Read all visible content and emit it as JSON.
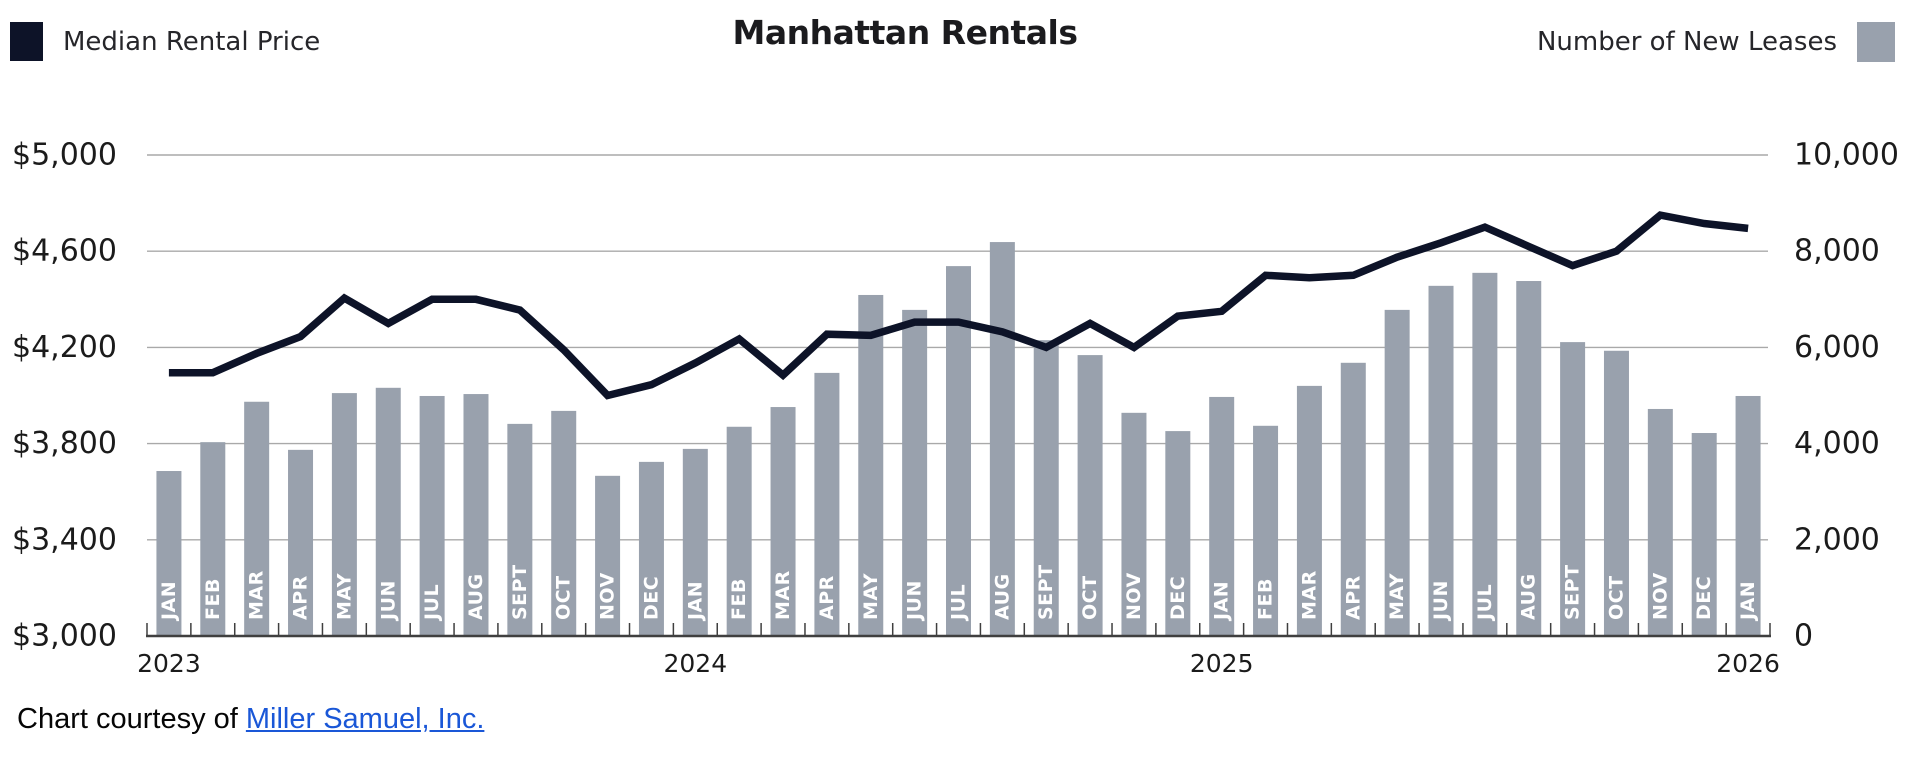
{
  "title": "Manhattan Rentals",
  "legend": {
    "line_label": "Median Rental Price",
    "bar_label": "Number of New Leases"
  },
  "footer": {
    "prefix": "Chart courtesy of ",
    "link_text": "Miller Samuel, Inc."
  },
  "colors": {
    "line": "#0d1328",
    "bar": "#99a1ad",
    "grid": "#a9a9a9",
    "axis": "#3f3f3f",
    "tick_text": "#1b1b1b",
    "bar_label_text": "#ffffff",
    "link": "#1a57d7"
  },
  "chart_data": {
    "type": "combo-bar-line",
    "title": "Manhattan Rentals",
    "months": [
      "JAN",
      "FEB",
      "MAR",
      "APR",
      "MAY",
      "JUN",
      "JUL",
      "AUG",
      "SEPT",
      "OCT",
      "NOV",
      "DEC",
      "JAN",
      "FEB",
      "MAR",
      "APR",
      "MAY",
      "JUN",
      "JUL",
      "AUG",
      "SEPT",
      "OCT",
      "NOV",
      "DEC",
      "JAN",
      "FEB",
      "MAR",
      "APR",
      "MAY",
      "JUN",
      "JUL",
      "AUG",
      "SEPT",
      "OCT",
      "NOV",
      "DEC",
      "JAN"
    ],
    "year_labels": [
      {
        "text": "2023",
        "month_index": 0
      },
      {
        "text": "2024",
        "month_index": 12
      },
      {
        "text": "2025",
        "month_index": 24
      },
      {
        "text": "2026",
        "month_index": 36
      }
    ],
    "series": [
      {
        "name": "Median Rental Price",
        "type": "line",
        "axis": "left",
        "color": "#0d1328",
        "values": [
          4095,
          4095,
          4175,
          4245,
          4405,
          4300,
          4400,
          4400,
          4355,
          4190,
          4000,
          4045,
          4135,
          4235,
          4085,
          4255,
          4250,
          4305,
          4305,
          4265,
          4200,
          4300,
          4200,
          4330,
          4350,
          4500,
          4490,
          4500,
          4575,
          4635,
          4700,
          4620,
          4540,
          4600,
          4750,
          4715,
          4695
        ]
      },
      {
        "name": "Number of New Leases",
        "type": "bar",
        "axis": "right",
        "color": "#99a1ad",
        "values": [
          3430,
          4030,
          4870,
          3870,
          5050,
          5160,
          4990,
          5030,
          4410,
          4680,
          3330,
          3620,
          3890,
          4350,
          4760,
          5470,
          7090,
          6780,
          7690,
          8190,
          6150,
          5840,
          4640,
          4260,
          4970,
          4370,
          5200,
          5680,
          6780,
          7280,
          7550,
          7380,
          6110,
          5930,
          4720,
          4220,
          4990
        ]
      }
    ],
    "left_axis": {
      "min": 3000,
      "max": 5000,
      "tick_values": [
        5000,
        4600,
        4200,
        3800,
        3400,
        3000
      ],
      "tick_labels": [
        "$5,000",
        "$4,600",
        "$4,200",
        "$3,800",
        "$3,400",
        "$3,000"
      ]
    },
    "right_axis": {
      "min": 0,
      "max": 10000,
      "tick_values": [
        10000,
        8000,
        6000,
        4000,
        2000,
        0
      ],
      "tick_labels": [
        "10,000",
        "8,000",
        "6,000",
        "4,000",
        "2,000",
        "0"
      ]
    },
    "grid": true,
    "legend_position": "top"
  }
}
